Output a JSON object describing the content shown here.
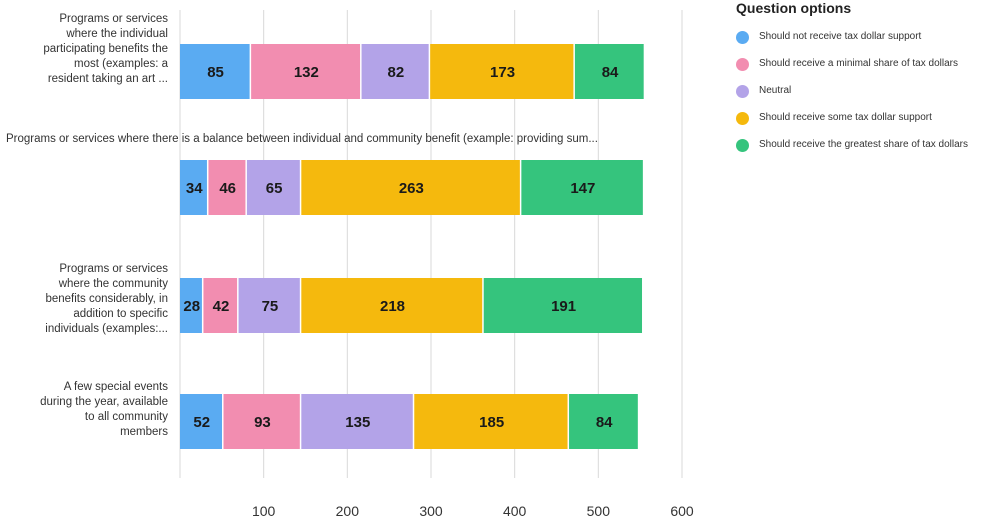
{
  "chart_data": {
    "type": "bar",
    "orientation": "horizontal",
    "stacked": true,
    "categories": [
      "Programs or services where the individual participating benefits the most (examples: a resident taking an art ...",
      "Programs or services where there is a balance between individual and community benefit (example: providing sum...",
      "Programs or services where the community benefits considerably, in addition to specific individuals (examples:...",
      "A few special events during the year, available to all community members"
    ],
    "category_lines": [
      [
        "Programs or services",
        "where the individual",
        "participating benefits the",
        "most (examples: a",
        "resident taking an art ..."
      ],
      [
        "Programs or services where there is a balance between individual and community benefit (example: providing sum..."
      ],
      [
        "Programs or services",
        "where the community",
        "benefits considerably, in",
        "addition to specific",
        "individuals (examples:..."
      ],
      [
        "A few special events",
        "during the year, available",
        "to all community",
        "members"
      ]
    ],
    "series": [
      {
        "name": "Should not receive tax dollar support",
        "color": "#5aabf2",
        "values": [
          85,
          34,
          28,
          52
        ]
      },
      {
        "name": "Should receive a minimal share of tax dollars",
        "color": "#f28db0",
        "values": [
          132,
          46,
          42,
          93
        ]
      },
      {
        "name": "Neutral",
        "color": "#b3a3e8",
        "values": [
          82,
          65,
          75,
          135
        ]
      },
      {
        "name": "Should receive some tax dollar support",
        "color": "#f5b90d",
        "values": [
          173,
          263,
          218,
          185
        ]
      },
      {
        "name": "Should receive the greatest share of tax dollars",
        "color": "#35c47d",
        "values": [
          84,
          147,
          191,
          84
        ]
      }
    ],
    "xlim": [
      0,
      600
    ],
    "xticks": [
      100,
      200,
      300,
      400,
      500,
      600
    ],
    "grid": true,
    "legend_title": "Question options",
    "legend_position": "right"
  }
}
